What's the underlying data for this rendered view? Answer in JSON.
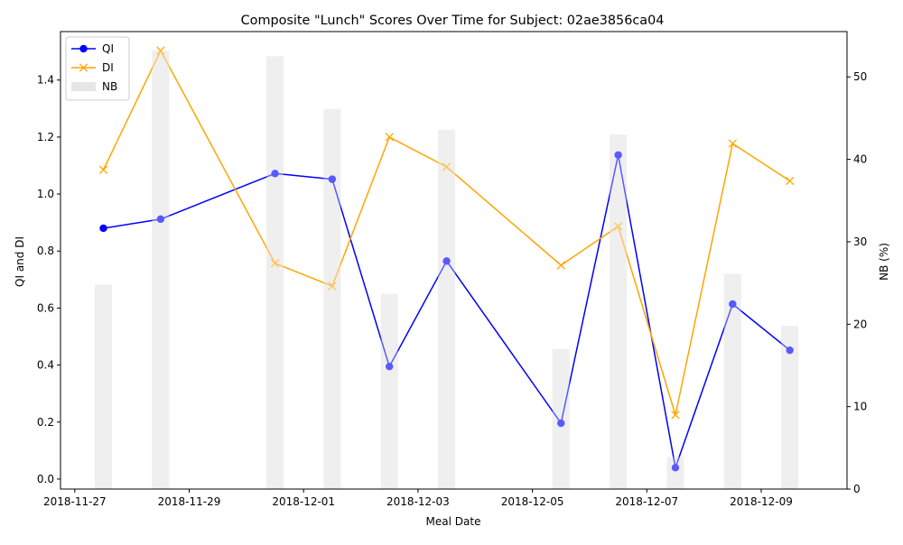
{
  "chart_data": {
    "type": "line",
    "title": "Composite \"Lunch\" Scores Over Time for Subject: 02ae3856ca04",
    "xlabel": "Meal Date",
    "ylabel": "QI and DI",
    "ylabel_right": "NB (%)",
    "x": [
      "2018-11-27T12:00",
      "2018-11-28T12:00",
      "2018-11-30T12:00",
      "2018-12-01T12:00",
      "2018-12-02T12:00",
      "2018-12-03T12:00",
      "2018-12-05T12:00",
      "2018-12-06T12:00",
      "2018-12-07T12:00",
      "2018-12-08T12:00",
      "2018-12-09T12:00"
    ],
    "x_ticks": [
      "2018-11-27",
      "2018-11-29",
      "2018-12-01",
      "2018-12-03",
      "2018-12-05",
      "2018-12-07",
      "2018-12-09"
    ],
    "xlim": [
      "2018-11-26T18:00",
      "2018-12-10T12:00"
    ],
    "ylim": [
      -0.035,
      1.57
    ],
    "ylim_right": [
      0,
      55.5
    ],
    "y_ticks": [
      0.0,
      0.2,
      0.4,
      0.6,
      0.8,
      1.0,
      1.2,
      1.4
    ],
    "y_tick_labels": [
      "0.0",
      "0.2",
      "0.4",
      "0.6",
      "0.8",
      "1.0",
      "1.2",
      "1.4"
    ],
    "y_ticks_right": [
      0,
      10,
      20,
      30,
      40,
      50
    ],
    "series": [
      {
        "name": "QI",
        "axis": "left",
        "kind": "line",
        "marker": "circle",
        "color": "#0000ff",
        "values": [
          0.88,
          0.912,
          1.072,
          1.052,
          0.395,
          0.765,
          0.196,
          1.137,
          0.04,
          0.614,
          0.452
        ]
      },
      {
        "name": "DI",
        "axis": "left",
        "kind": "line",
        "marker": "x",
        "color": "#ffa500",
        "values": [
          1.085,
          1.503,
          0.757,
          0.677,
          1.2,
          1.095,
          0.75,
          0.887,
          0.225,
          1.177,
          1.046
        ]
      },
      {
        "name": "NB",
        "axis": "right",
        "kind": "bar",
        "color": "#e6e6e6",
        "values": [
          24.8,
          53.2,
          52.5,
          46.1,
          23.7,
          43.6,
          17.0,
          43.0,
          3.9,
          26.1,
          19.8
        ]
      }
    ],
    "legend": "top-left",
    "grid": false
  }
}
